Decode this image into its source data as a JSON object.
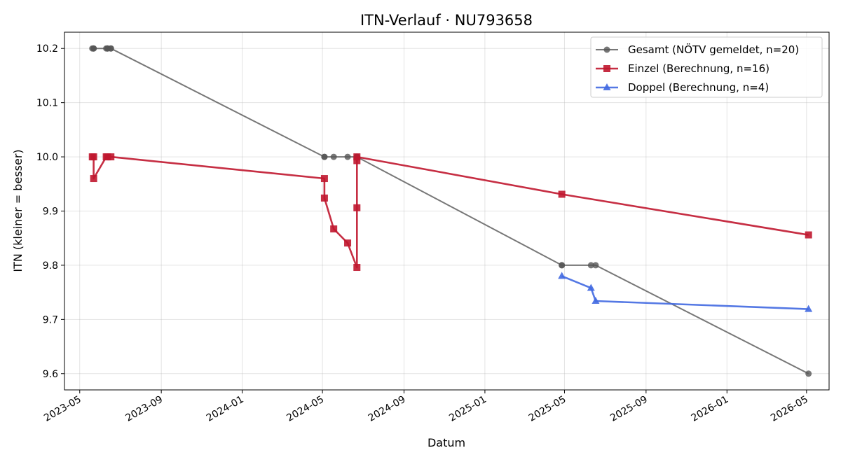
{
  "chart_data": {
    "type": "line",
    "title": "ITN-Verlauf · NU793658",
    "xlabel": "Datum",
    "ylabel": "ITN  (kleiner = besser)",
    "xlim": [
      "2023-04-08",
      "2026-06-04"
    ],
    "ylim": [
      9.57,
      10.23
    ],
    "x_ticks": [
      "2023-05",
      "2023-09",
      "2024-01",
      "2024-05",
      "2024-09",
      "2025-01",
      "2025-05",
      "2025-09",
      "2026-01",
      "2026-05"
    ],
    "y_ticks": [
      "9.6",
      "9.7",
      "9.8",
      "9.9",
      "10.0",
      "10.1",
      "10.2"
    ],
    "grid": true,
    "legend_position": "top-right",
    "series": [
      {
        "name": "Gesamt (NÖTV gemeldet, n=20)",
        "color": "#555555",
        "marker": "circle",
        "points": [
          {
            "x": "2023-05-20",
            "y": 10.2
          },
          {
            "x": "2023-05-22",
            "y": 10.2
          },
          {
            "x": "2023-05-22",
            "y": 10.2
          },
          {
            "x": "2023-06-10",
            "y": 10.2
          },
          {
            "x": "2023-06-12",
            "y": 10.2
          },
          {
            "x": "2023-06-12",
            "y": 10.2
          },
          {
            "x": "2023-06-17",
            "y": 10.2
          },
          {
            "x": "2023-06-17",
            "y": 10.2
          },
          {
            "x": "2024-05-04",
            "y": 10.0
          },
          {
            "x": "2024-05-04",
            "y": 10.0
          },
          {
            "x": "2024-05-18",
            "y": 10.0
          },
          {
            "x": "2024-06-08",
            "y": 10.0
          },
          {
            "x": "2024-06-22",
            "y": 10.0
          },
          {
            "x": "2024-06-22",
            "y": 10.0
          },
          {
            "x": "2024-06-22",
            "y": 10.0
          },
          {
            "x": "2025-04-27",
            "y": 9.8
          },
          {
            "x": "2025-04-27",
            "y": 9.8
          },
          {
            "x": "2025-06-10",
            "y": 9.8
          },
          {
            "x": "2025-06-17",
            "y": 9.8
          },
          {
            "x": "2026-05-04",
            "y": 9.6
          }
        ]
      },
      {
        "name": "Einzel (Berechnung, n=16)",
        "color": "#c0172f",
        "marker": "square",
        "points": [
          {
            "x": "2023-05-20",
            "y": 10.0
          },
          {
            "x": "2023-05-22",
            "y": 10.0
          },
          {
            "x": "2023-05-22",
            "y": 9.96
          },
          {
            "x": "2023-06-10",
            "y": 10.0
          },
          {
            "x": "2023-06-12",
            "y": 10.0
          },
          {
            "x": "2023-06-17",
            "y": 10.0
          },
          {
            "x": "2024-05-04",
            "y": 9.96
          },
          {
            "x": "2024-05-04",
            "y": 9.924
          },
          {
            "x": "2024-05-18",
            "y": 9.867
          },
          {
            "x": "2024-06-08",
            "y": 9.841
          },
          {
            "x": "2024-06-22",
            "y": 9.796
          },
          {
            "x": "2024-06-22",
            "y": 9.906
          },
          {
            "x": "2024-06-22",
            "y": 9.993
          },
          {
            "x": "2024-06-22",
            "y": 10.0
          },
          {
            "x": "2025-04-27",
            "y": 9.931
          },
          {
            "x": "2026-05-04",
            "y": 9.856
          }
        ]
      },
      {
        "name": "Doppel (Berechnung, n=4)",
        "color": "#4169e1",
        "marker": "triangle",
        "points": [
          {
            "x": "2025-04-27",
            "y": 9.78
          },
          {
            "x": "2025-06-10",
            "y": 9.758
          },
          {
            "x": "2025-06-17",
            "y": 9.734
          },
          {
            "x": "2026-05-04",
            "y": 9.719
          }
        ]
      }
    ]
  }
}
